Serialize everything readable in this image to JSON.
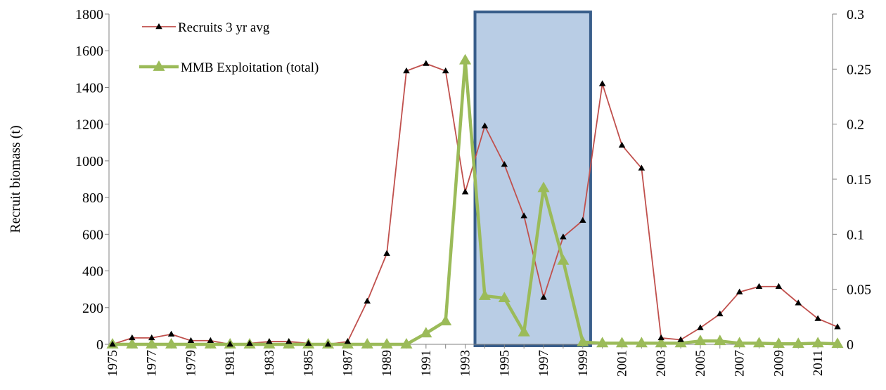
{
  "chart_data": {
    "type": "line",
    "title": "",
    "xlabel": "",
    "ylabel": "Recruit biomass (t)",
    "y2label": "",
    "ylim": [
      0,
      1800
    ],
    "y2lim": [
      0,
      0.3
    ],
    "yticks": [
      0,
      200,
      400,
      600,
      800,
      1000,
      1200,
      1400,
      1600,
      1800
    ],
    "y2ticks": [
      0,
      0.05,
      0.1,
      0.15,
      0.2,
      0.25,
      0.3
    ],
    "xticks": [
      "1975",
      "1977",
      "1979",
      "1981",
      "1983",
      "1985",
      "1987",
      "1989",
      "1991",
      "1993",
      "1995",
      "1997",
      "1999",
      "2001",
      "2003",
      "2005",
      "2007",
      "2009",
      "2011"
    ],
    "x": [
      1975,
      1976,
      1977,
      1978,
      1979,
      1980,
      1981,
      1982,
      1983,
      1984,
      1985,
      1986,
      1987,
      1988,
      1989,
      1990,
      1991,
      1992,
      1993,
      1994,
      1995,
      1996,
      1997,
      1998,
      1999,
      2000,
      2001,
      2002,
      2003,
      2004,
      2005,
      2006,
      2007,
      2008,
      2009,
      2010,
      2011,
      2012
    ],
    "legend_position": "top-left",
    "highlight_range": [
      1993.5,
      1999.4
    ],
    "colors": {
      "recruits": "#c0504d",
      "recruits_marker": "#000000",
      "exploitation": "#9bbb59",
      "highlight_fill": "#b9cde5",
      "highlight_border": "#385d8a"
    },
    "series": [
      {
        "name": "Recruits 3 yr avg",
        "axis": "left",
        "values": [
          0,
          35,
          35,
          55,
          20,
          20,
          0,
          5,
          15,
          15,
          5,
          0,
          15,
          235,
          495,
          1490,
          1530,
          1490,
          830,
          1190,
          980,
          700,
          255,
          585,
          675,
          1420,
          1085,
          960,
          35,
          25,
          90,
          165,
          285,
          315,
          315,
          225,
          140,
          95
        ]
      },
      {
        "name": "MMB Exploitation (total)",
        "axis": "right",
        "values": [
          0,
          0,
          0,
          0,
          0,
          0,
          0,
          0,
          0,
          0,
          0,
          0,
          0,
          0,
          0,
          0,
          0.01,
          0.021,
          0.258,
          0.044,
          0.042,
          0.011,
          0.142,
          0.076,
          0.002,
          0.001,
          0.001,
          0.001,
          0.001,
          0.001,
          0.003,
          0.003,
          0.001,
          0.001,
          0.0005,
          0.0005,
          0.001,
          0.0005
        ]
      }
    ]
  }
}
